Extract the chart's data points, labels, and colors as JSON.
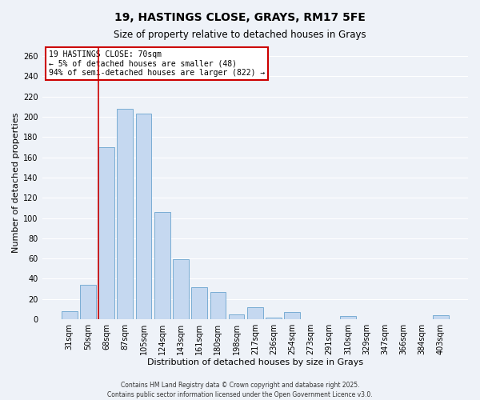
{
  "title": "19, HASTINGS CLOSE, GRAYS, RM17 5FE",
  "subtitle": "Size of property relative to detached houses in Grays",
  "xlabel": "Distribution of detached houses by size in Grays",
  "ylabel": "Number of detached properties",
  "bar_labels": [
    "31sqm",
    "50sqm",
    "68sqm",
    "87sqm",
    "105sqm",
    "124sqm",
    "143sqm",
    "161sqm",
    "180sqm",
    "198sqm",
    "217sqm",
    "236sqm",
    "254sqm",
    "273sqm",
    "291sqm",
    "310sqm",
    "329sqm",
    "347sqm",
    "366sqm",
    "384sqm",
    "403sqm"
  ],
  "bar_heights": [
    8,
    34,
    170,
    208,
    203,
    106,
    59,
    32,
    27,
    5,
    12,
    2,
    7,
    0,
    0,
    3,
    0,
    0,
    0,
    0,
    4
  ],
  "bar_color": "#c5d8f0",
  "bar_edge_color": "#7aadd4",
  "vline_color": "#cc0000",
  "vline_bar_index": 2,
  "ylim": [
    0,
    270
  ],
  "yticks": [
    0,
    20,
    40,
    60,
    80,
    100,
    120,
    140,
    160,
    180,
    200,
    220,
    240,
    260
  ],
  "annotation_title": "19 HASTINGS CLOSE: 70sqm",
  "annotation_line1": "← 5% of detached houses are smaller (48)",
  "annotation_line2": "94% of semi-detached houses are larger (822) →",
  "annotation_box_color": "#ffffff",
  "annotation_box_edge": "#cc0000",
  "footer1": "Contains HM Land Registry data © Crown copyright and database right 2025.",
  "footer2": "Contains public sector information licensed under the Open Government Licence v3.0.",
  "bg_color": "#eef2f8",
  "grid_color": "#ffffff",
  "title_fontsize": 10,
  "subtitle_fontsize": 8.5,
  "xlabel_fontsize": 8,
  "ylabel_fontsize": 8,
  "tick_fontsize": 7,
  "annotation_fontsize": 7,
  "footer_fontsize": 5.5
}
